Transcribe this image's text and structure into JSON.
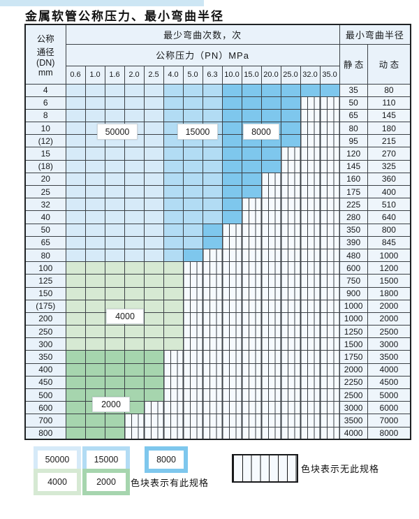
{
  "page": {
    "title": "金属软管公称压力、最小弯曲半径"
  },
  "colors": {
    "blue_50000": "#d6eaf8",
    "blue_15000": "#b2dcf4",
    "blue_8000": "#7ec7ed",
    "green_4000": "#d6e9d3",
    "green_2000": "#a6d5ae"
  },
  "table": {
    "header": {
      "dn_lines": [
        "公称",
        "通径",
        "(DN)",
        "mm"
      ],
      "bend_cycles": "最少弯曲次数，次",
      "pressure": "公称压力（PN）MPa",
      "min_radius": "最小弯曲半径",
      "static": "静 态",
      "dynamic": "动 态",
      "pressure_cols": [
        "0.6",
        "1.0",
        "1.6",
        "2.0",
        "2.5",
        "4.0",
        "5.0",
        "6.3",
        "10.0",
        "15.0",
        "20.0",
        "25.0",
        "32.0",
        "35.0"
      ]
    },
    "rows": [
      {
        "dn": "4",
        "static": "35",
        "dynamic": "80",
        "zones": [
          [
            "c1",
            5
          ],
          [
            "c2",
            3
          ],
          [
            "c3",
            6
          ]
        ]
      },
      {
        "dn": "6",
        "static": "50",
        "dynamic": "110",
        "zones": [
          [
            "c1",
            5
          ],
          [
            "c2",
            3
          ],
          [
            "c3",
            4
          ],
          [
            "h",
            2
          ]
        ]
      },
      {
        "dn": "8",
        "static": "65",
        "dynamic": "145",
        "zones": [
          [
            "c1",
            5
          ],
          [
            "c2",
            3
          ],
          [
            "c3",
            4
          ],
          [
            "h",
            2
          ]
        ]
      },
      {
        "dn": "10",
        "static": "80",
        "dynamic": "180",
        "zones": [
          [
            "c1",
            5
          ],
          [
            "c2",
            3
          ],
          [
            "c3",
            4
          ],
          [
            "h",
            2
          ]
        ]
      },
      {
        "dn": "(12)",
        "static": "95",
        "dynamic": "215",
        "zones": [
          [
            "c1",
            5
          ],
          [
            "c2",
            3
          ],
          [
            "c3",
            4
          ],
          [
            "h",
            2
          ]
        ]
      },
      {
        "dn": "15",
        "static": "120",
        "dynamic": "270",
        "zones": [
          [
            "c1",
            5
          ],
          [
            "c2",
            3
          ],
          [
            "c3",
            3
          ],
          [
            "h",
            3
          ]
        ]
      },
      {
        "dn": "(18)",
        "static": "145",
        "dynamic": "325",
        "zones": [
          [
            "c1",
            5
          ],
          [
            "c2",
            3
          ],
          [
            "c3",
            3
          ],
          [
            "h",
            3
          ]
        ]
      },
      {
        "dn": "20",
        "static": "160",
        "dynamic": "360",
        "zones": [
          [
            "c1",
            5
          ],
          [
            "c2",
            3
          ],
          [
            "c3",
            2
          ],
          [
            "h",
            4
          ]
        ]
      },
      {
        "dn": "25",
        "static": "175",
        "dynamic": "400",
        "zones": [
          [
            "c1",
            5
          ],
          [
            "c2",
            3
          ],
          [
            "c3",
            2
          ],
          [
            "h",
            4
          ]
        ]
      },
      {
        "dn": "32",
        "static": "225",
        "dynamic": "510",
        "zones": [
          [
            "c1",
            5
          ],
          [
            "c2",
            3
          ],
          [
            "c3",
            1
          ],
          [
            "h",
            5
          ]
        ]
      },
      {
        "dn": "40",
        "static": "280",
        "dynamic": "640",
        "zones": [
          [
            "c1",
            5
          ],
          [
            "c2",
            3
          ],
          [
            "c3",
            1
          ],
          [
            "h",
            5
          ]
        ]
      },
      {
        "dn": "50",
        "static": "350",
        "dynamic": "800",
        "zones": [
          [
            "c1",
            5
          ],
          [
            "c2",
            2
          ],
          [
            "c3",
            1
          ],
          [
            "h",
            6
          ]
        ]
      },
      {
        "dn": "65",
        "static": "390",
        "dynamic": "845",
        "zones": [
          [
            "c1",
            5
          ],
          [
            "c2",
            2
          ],
          [
            "c3",
            1
          ],
          [
            "h",
            6
          ]
        ]
      },
      {
        "dn": "80",
        "static": "480",
        "dynamic": "1000",
        "zones": [
          [
            "c1",
            5
          ],
          [
            "c2",
            1
          ],
          [
            "c3",
            1
          ],
          [
            "h",
            7
          ]
        ]
      },
      {
        "dn": "100",
        "static": "600",
        "dynamic": "1200",
        "zones": [
          [
            "g1",
            6
          ],
          [
            "h",
            8
          ]
        ]
      },
      {
        "dn": "125",
        "static": "750",
        "dynamic": "1500",
        "zones": [
          [
            "g1",
            6
          ],
          [
            "h",
            8
          ]
        ]
      },
      {
        "dn": "150",
        "static": "900",
        "dynamic": "1800",
        "zones": [
          [
            "g1",
            6
          ],
          [
            "h",
            8
          ]
        ]
      },
      {
        "dn": "(175)",
        "static": "1000",
        "dynamic": "2000",
        "zones": [
          [
            "g1",
            6
          ],
          [
            "h",
            8
          ]
        ]
      },
      {
        "dn": "200",
        "static": "1000",
        "dynamic": "2000",
        "zones": [
          [
            "g1",
            6
          ],
          [
            "h",
            8
          ]
        ]
      },
      {
        "dn": "250",
        "static": "1250",
        "dynamic": "2500",
        "zones": [
          [
            "g1",
            6
          ],
          [
            "h",
            8
          ]
        ]
      },
      {
        "dn": "300",
        "static": "1500",
        "dynamic": "3000",
        "zones": [
          [
            "g1",
            6
          ],
          [
            "h",
            8
          ]
        ]
      },
      {
        "dn": "350",
        "static": "1750",
        "dynamic": "3500",
        "zones": [
          [
            "g2",
            5
          ],
          [
            "h",
            9
          ]
        ]
      },
      {
        "dn": "400",
        "static": "2000",
        "dynamic": "4000",
        "zones": [
          [
            "g2",
            5
          ],
          [
            "h",
            9
          ]
        ]
      },
      {
        "dn": "450",
        "static": "2250",
        "dynamic": "4500",
        "zones": [
          [
            "g2",
            5
          ],
          [
            "h",
            9
          ]
        ]
      },
      {
        "dn": "500",
        "static": "2500",
        "dynamic": "5000",
        "zones": [
          [
            "g2",
            5
          ],
          [
            "h",
            9
          ]
        ]
      },
      {
        "dn": "600",
        "static": "3000",
        "dynamic": "6000",
        "zones": [
          [
            "g2",
            4
          ],
          [
            "h",
            10
          ]
        ]
      },
      {
        "dn": "700",
        "static": "3500",
        "dynamic": "7000",
        "zones": [
          [
            "g2",
            3
          ],
          [
            "h",
            11
          ]
        ]
      },
      {
        "dn": "800",
        "static": "4000",
        "dynamic": "8000",
        "zones": [
          [
            "g2",
            3
          ],
          [
            "h",
            11
          ]
        ]
      }
    ]
  },
  "overlays": {
    "b50000": "50000",
    "b15000": "15000",
    "b8000": "8000",
    "g4000": "4000",
    "g2000": "2000"
  },
  "legend": {
    "items": [
      {
        "label": "50000",
        "colorKey": "blue_50000"
      },
      {
        "label": "15000",
        "colorKey": "blue_15000"
      },
      {
        "label": "8000",
        "colorKey": "blue_8000"
      },
      {
        "label": "4000",
        "colorKey": "green_4000"
      },
      {
        "label": "2000",
        "colorKey": "green_2000"
      }
    ],
    "has_spec": "色块表示有此规格",
    "no_spec": "色块表示无此规格"
  }
}
